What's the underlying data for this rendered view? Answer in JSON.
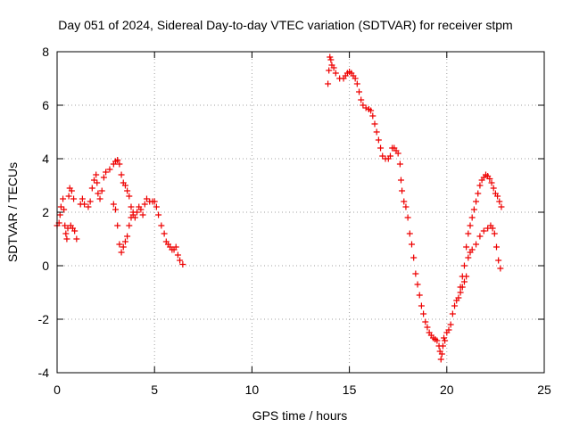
{
  "chart_data": {
    "type": "scatter",
    "title": "Day 051 of 2024, Sidereal Day-to-day VTEC variation (SDTVAR) for receiver stpm",
    "xlabel": "GPS time / hours",
    "ylabel": "SDTVAR / TECUs",
    "xlim": [
      0,
      25
    ],
    "ylim": [
      -4,
      8
    ],
    "xticks": [
      0,
      5,
      10,
      15,
      20,
      25
    ],
    "yticks": [
      -4,
      -2,
      0,
      2,
      4,
      6,
      8
    ],
    "xtick_labels": [
      "0",
      "5",
      "10",
      "15",
      "20",
      "25"
    ],
    "ytick_labels": [
      "-4",
      "-2",
      "0",
      "2",
      "4",
      "6",
      "8"
    ],
    "grid": true,
    "marker": "+",
    "color": "#ee0000",
    "series": [
      {
        "values": [
          [
            0.0,
            1.5
          ],
          [
            0.1,
            1.6
          ],
          [
            0.15,
            1.9
          ],
          [
            0.2,
            2.2
          ],
          [
            0.3,
            2.5
          ],
          [
            0.35,
            2.1
          ],
          [
            0.4,
            1.5
          ],
          [
            0.45,
            1.2
          ],
          [
            0.5,
            1.0
          ],
          [
            0.55,
            1.4
          ],
          [
            0.6,
            2.6
          ],
          [
            0.65,
            2.9
          ],
          [
            0.75,
            2.8
          ],
          [
            0.85,
            2.5
          ],
          [
            0.7,
            1.5
          ],
          [
            0.8,
            1.4
          ],
          [
            0.9,
            1.3
          ],
          [
            1.0,
            1.0
          ],
          [
            1.2,
            2.3
          ],
          [
            1.3,
            2.5
          ],
          [
            1.4,
            2.3
          ],
          [
            1.6,
            2.2
          ],
          [
            1.7,
            2.4
          ],
          [
            1.8,
            2.9
          ],
          [
            1.9,
            3.2
          ],
          [
            2.0,
            3.4
          ],
          [
            2.05,
            3.1
          ],
          [
            2.1,
            2.7
          ],
          [
            2.2,
            2.5
          ],
          [
            2.3,
            2.8
          ],
          [
            2.4,
            3.3
          ],
          [
            2.5,
            3.5
          ],
          [
            2.7,
            3.6
          ],
          [
            2.9,
            3.8
          ],
          [
            3.0,
            3.9
          ],
          [
            3.1,
            3.95
          ],
          [
            3.2,
            3.8
          ],
          [
            3.3,
            3.4
          ],
          [
            3.4,
            3.1
          ],
          [
            3.5,
            3.0
          ],
          [
            3.6,
            2.8
          ],
          [
            3.7,
            2.6
          ],
          [
            3.8,
            2.2
          ],
          [
            3.9,
            1.9
          ],
          [
            4.0,
            1.8
          ],
          [
            4.1,
            2.0
          ],
          [
            4.2,
            2.2
          ],
          [
            4.3,
            2.1
          ],
          [
            4.4,
            1.9
          ],
          [
            4.5,
            2.3
          ],
          [
            4.6,
            2.5
          ],
          [
            4.75,
            2.4
          ],
          [
            4.9,
            2.4
          ],
          [
            5.0,
            2.4
          ],
          [
            5.1,
            2.2
          ],
          [
            5.2,
            1.9
          ],
          [
            5.35,
            1.5
          ],
          [
            5.5,
            1.2
          ],
          [
            5.6,
            0.9
          ],
          [
            5.7,
            0.8
          ],
          [
            5.8,
            0.7
          ],
          [
            5.9,
            0.6
          ],
          [
            6.0,
            0.6
          ],
          [
            6.1,
            0.7
          ],
          [
            6.2,
            0.4
          ],
          [
            6.3,
            0.2
          ],
          [
            6.45,
            0.05
          ],
          [
            2.9,
            2.3
          ],
          [
            3.0,
            2.1
          ],
          [
            3.1,
            1.5
          ],
          [
            3.2,
            0.8
          ],
          [
            3.3,
            0.5
          ],
          [
            3.4,
            0.7
          ],
          [
            3.5,
            0.9
          ],
          [
            3.6,
            1.1
          ],
          [
            3.7,
            1.5
          ],
          [
            3.8,
            1.8
          ],
          [
            3.9,
            2.0
          ]
        ]
      },
      {
        "values": [
          [
            13.9,
            6.8
          ],
          [
            13.95,
            7.3
          ],
          [
            14.0,
            7.8
          ],
          [
            14.05,
            7.7
          ],
          [
            14.1,
            7.5
          ],
          [
            14.2,
            7.4
          ],
          [
            14.3,
            7.2
          ],
          [
            14.5,
            7.0
          ],
          [
            14.7,
            7.0
          ],
          [
            14.8,
            7.1
          ],
          [
            14.9,
            7.2
          ],
          [
            15.0,
            7.25
          ],
          [
            15.1,
            7.2
          ],
          [
            15.2,
            7.1
          ],
          [
            15.3,
            7.0
          ],
          [
            15.4,
            6.8
          ],
          [
            15.5,
            6.5
          ],
          [
            15.6,
            6.2
          ],
          [
            15.7,
            6.0
          ],
          [
            15.85,
            5.9
          ],
          [
            16.0,
            5.85
          ],
          [
            16.1,
            5.8
          ],
          [
            16.2,
            5.6
          ],
          [
            16.3,
            5.3
          ],
          [
            16.4,
            5.0
          ],
          [
            16.5,
            4.7
          ],
          [
            16.6,
            4.4
          ],
          [
            16.7,
            4.1
          ],
          [
            16.85,
            4.0
          ],
          [
            17.0,
            4.0
          ],
          [
            17.1,
            4.1
          ],
          [
            17.2,
            4.4
          ],
          [
            17.3,
            4.4
          ],
          [
            17.4,
            4.3
          ],
          [
            17.5,
            4.2
          ],
          [
            17.6,
            3.8
          ],
          [
            17.65,
            3.2
          ],
          [
            17.7,
            2.8
          ],
          [
            17.8,
            2.4
          ],
          [
            17.9,
            2.2
          ],
          [
            18.0,
            1.8
          ],
          [
            18.1,
            1.2
          ],
          [
            18.2,
            0.8
          ],
          [
            18.3,
            0.3
          ],
          [
            18.4,
            -0.3
          ],
          [
            18.5,
            -0.7
          ],
          [
            18.6,
            -1.1
          ],
          [
            18.7,
            -1.5
          ],
          [
            18.8,
            -1.8
          ],
          [
            18.9,
            -2.1
          ],
          [
            19.0,
            -2.3
          ],
          [
            19.1,
            -2.5
          ],
          [
            19.2,
            -2.6
          ],
          [
            19.3,
            -2.7
          ],
          [
            19.4,
            -2.75
          ],
          [
            19.5,
            -2.8
          ],
          [
            19.6,
            -3.0
          ],
          [
            19.65,
            -3.2
          ],
          [
            19.7,
            -3.5
          ],
          [
            19.75,
            -3.3
          ],
          [
            19.8,
            -3.0
          ],
          [
            19.85,
            -2.7
          ],
          [
            19.9,
            -2.8
          ],
          [
            20.0,
            -2.5
          ],
          [
            20.1,
            -2.4
          ],
          [
            20.2,
            -2.2
          ],
          [
            20.3,
            -1.8
          ],
          [
            20.4,
            -1.5
          ],
          [
            20.5,
            -1.3
          ],
          [
            20.6,
            -1.2
          ],
          [
            20.7,
            -1.0
          ],
          [
            20.8,
            -0.8
          ],
          [
            20.9,
            -0.6
          ],
          [
            21.0,
            -0.4
          ],
          [
            21.1,
            0.3
          ],
          [
            21.2,
            0.5
          ],
          [
            21.3,
            0.6
          ],
          [
            21.5,
            0.8
          ],
          [
            21.7,
            1.1
          ],
          [
            21.9,
            1.3
          ],
          [
            22.1,
            1.4
          ],
          [
            22.25,
            1.5
          ],
          [
            22.35,
            1.4
          ],
          [
            22.45,
            1.2
          ],
          [
            22.55,
            0.7
          ],
          [
            22.65,
            0.2
          ],
          [
            22.75,
            -0.1
          ],
          [
            20.7,
            -0.8
          ],
          [
            20.8,
            -0.4
          ],
          [
            20.9,
            0.0
          ],
          [
            21.0,
            0.7
          ],
          [
            21.1,
            1.2
          ],
          [
            21.2,
            1.5
          ],
          [
            21.3,
            1.8
          ],
          [
            21.4,
            2.1
          ],
          [
            21.5,
            2.4
          ],
          [
            21.6,
            2.7
          ],
          [
            21.7,
            3.0
          ],
          [
            21.8,
            3.2
          ],
          [
            21.9,
            3.3
          ],
          [
            22.0,
            3.4
          ],
          [
            22.1,
            3.35
          ],
          [
            22.2,
            3.25
          ],
          [
            22.3,
            3.1
          ],
          [
            22.4,
            2.9
          ],
          [
            22.5,
            2.7
          ],
          [
            22.6,
            2.6
          ],
          [
            22.7,
            2.4
          ],
          [
            22.8,
            2.2
          ]
        ]
      }
    ]
  }
}
